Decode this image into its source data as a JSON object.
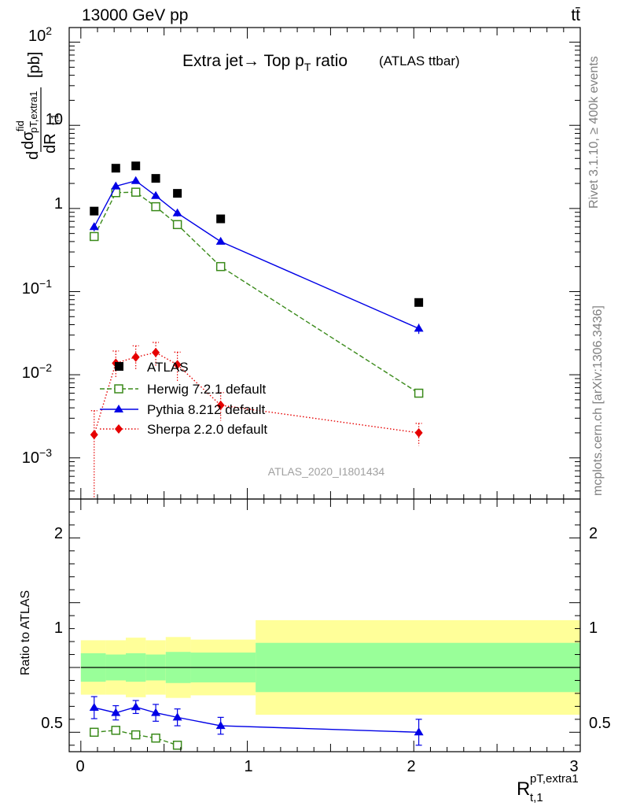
{
  "header": {
    "left": "13000 GeV pp",
    "right": "tt̄"
  },
  "side": {
    "rivet": "Rivet 3.1.10, ≥ 400k events",
    "mcplots": "mcplots.cern.ch [arXiv:1306.3436]"
  },
  "chart_data": {
    "type": "scatter",
    "title": "Extra jet→ Top p",
    "title_sub": "T",
    "title_tail": " ratio",
    "title_note": "(ATLAS ttbar)",
    "analysis_id": "ATLAS_2020_I1801434",
    "xlabel_main": "R",
    "xlabel_sub": "t,1",
    "xlabel_sup": "pT,extra1",
    "ylabel_main": {
      "d": "d",
      "sigma": "dσ",
      "sup": "fid",
      "sub": "pT,extra1",
      "dR": "dR",
      "dRsub": "t,1",
      "unit": "[pb]"
    },
    "ratio_ylabel": "Ratio to ATLAS",
    "xlim": [
      -0.07,
      3.0
    ],
    "x_ticks": [
      "0",
      "1",
      "2",
      "3"
    ],
    "main_ylim": [
      0.00032,
      150
    ],
    "main_scale": "log",
    "main_y_ticks": {
      "y100": "10",
      "y100exp": "2",
      "y10": "10",
      "y1": "1",
      "y01": "10",
      "y01exp": "−1",
      "y001": "10",
      "y001exp": "−2",
      "y0001": "10",
      "y0001exp": "−3"
    },
    "ratio_ylim": [
      0.35,
      2.3
    ],
    "ratio_y_ticks": [
      "0.5",
      "1",
      "2"
    ],
    "legend_position": "center-left",
    "data": {
      "name": "ATLAS",
      "color": "#000000",
      "x": [
        0.08,
        0.21,
        0.33,
        0.45,
        0.58,
        0.84,
        2.03
      ],
      "y": [
        0.93,
        3.05,
        3.25,
        2.3,
        1.52,
        0.75,
        0.074
      ],
      "bins": [
        [
          0.0,
          0.15
        ],
        [
          0.15,
          0.27
        ],
        [
          0.27,
          0.39
        ],
        [
          0.39,
          0.51
        ],
        [
          0.51,
          0.66
        ],
        [
          0.66,
          1.05
        ],
        [
          1.05,
          3.0
        ]
      ],
      "stat_band": [
        0.22,
        0.2,
        0.22,
        0.2,
        0.24,
        0.23,
        0.38
      ],
      "total_band": [
        0.42,
        0.42,
        0.46,
        0.42,
        0.47,
        0.43,
        0.73
      ]
    },
    "series": [
      {
        "name": "Herwig 7.2.1 default",
        "color": "#3a8a1a",
        "marker": "open-square",
        "line": "dashed",
        "x": [
          0.08,
          0.21,
          0.33,
          0.45,
          0.58,
          0.84,
          2.03
        ],
        "y": [
          0.46,
          1.55,
          1.57,
          1.05,
          0.64,
          0.2,
          0.006
        ],
        "ratio": [
          0.5,
          0.515,
          0.48,
          0.455,
          0.4,
          null,
          null
        ],
        "ratio_err": [
          0.02,
          0.015,
          0.015,
          0.015,
          0.02,
          null,
          null
        ]
      },
      {
        "name": "Pythia 8.212 default",
        "color": "#0000e6",
        "marker": "filled-triangle",
        "line": "solid",
        "x": [
          0.08,
          0.21,
          0.33,
          0.45,
          0.58,
          0.84,
          2.03
        ],
        "y": [
          0.6,
          1.85,
          2.15,
          1.42,
          0.88,
          0.4,
          0.036
        ],
        "y_err": [
          0.07,
          0.12,
          0.15,
          0.1,
          0.08,
          0.03,
          0.005
        ],
        "ratio": [
          0.69,
          0.65,
          0.695,
          0.65,
          0.615,
          0.55,
          0.5
        ],
        "ratio_err": [
          0.085,
          0.055,
          0.05,
          0.065,
          0.065,
          0.065,
          0.1
        ]
      },
      {
        "name": "Sherpa 2.2.0 default",
        "color": "#e60000",
        "marker": "filled-diamond",
        "line": "dotted",
        "x": [
          0.08,
          0.21,
          0.33,
          0.45,
          0.58,
          0.84,
          2.03
        ],
        "y": [
          0.0019,
          0.0138,
          0.0163,
          0.0185,
          0.0132,
          0.0043,
          0.002
        ],
        "y_err_low": [
          0.0017,
          0.0045,
          0.005,
          0.006,
          0.005,
          0.0015,
          0.0006
        ],
        "y_err_high": [
          0.0018,
          0.0055,
          0.006,
          0.006,
          0.0055,
          0.0018,
          0.0006
        ]
      }
    ]
  }
}
